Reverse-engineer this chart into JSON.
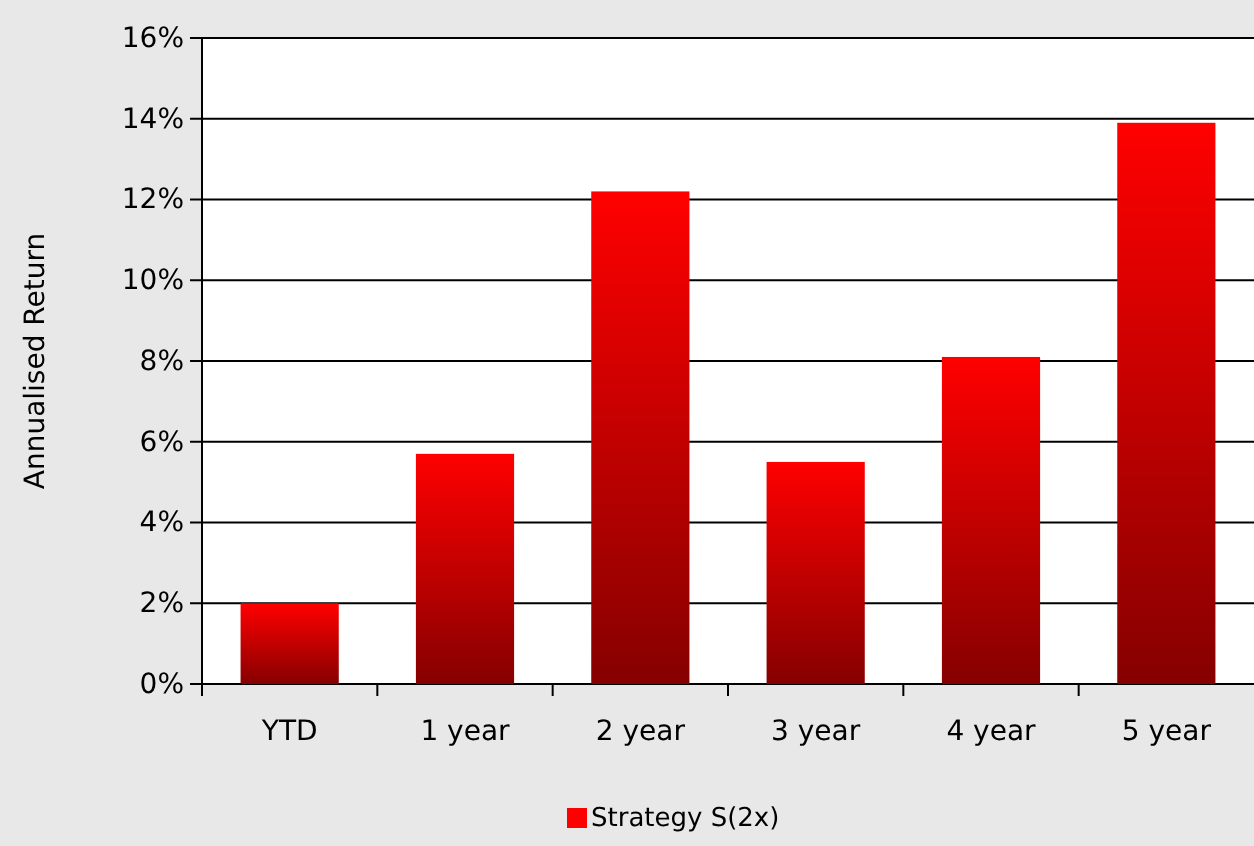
{
  "chart_data": {
    "type": "bar",
    "ylabel": "Annualised Return",
    "categories": [
      "YTD",
      "1 year",
      "2 year",
      "3 year",
      "4 year",
      "5 year"
    ],
    "series": [
      {
        "name": "Strategy S(2x)",
        "color": "#ff0000",
        "values": [
          2.0,
          5.7,
          12.2,
          5.5,
          8.1,
          13.9
        ]
      }
    ],
    "ylim": [
      0,
      16
    ],
    "yticks": [
      {
        "value": 0,
        "label": "0%"
      },
      {
        "value": 2,
        "label": "2%"
      },
      {
        "value": 4,
        "label": "4%"
      },
      {
        "value": 6,
        "label": "6%"
      },
      {
        "value": 8,
        "label": "8%"
      },
      {
        "value": 10,
        "label": "10%"
      },
      {
        "value": 12,
        "label": "12%"
      },
      {
        "value": 14,
        "label": "14%"
      },
      {
        "value": 16,
        "label": "16%"
      }
    ],
    "grid": "y",
    "legend": "bottom"
  }
}
